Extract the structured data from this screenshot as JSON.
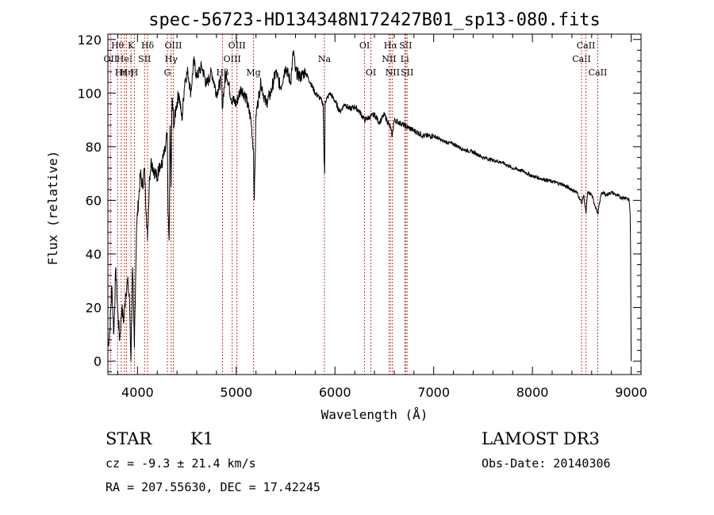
{
  "chart_data": {
    "type": "line",
    "title": "spec-56723-HD134348N172427B01_sp13-080.fits",
    "xlabel": "Wavelength (Å)",
    "ylabel": "Flux (relative)",
    "xlim": [
      3700,
      9100
    ],
    "ylim": [
      -5,
      122
    ],
    "xticks": [
      4000,
      5000,
      6000,
      7000,
      8000,
      9000
    ],
    "yticks": [
      0,
      20,
      40,
      60,
      80,
      100,
      120
    ],
    "grid": false,
    "series": [
      {
        "x": [
          3700,
          3720,
          3740,
          3760,
          3780,
          3800,
          3820,
          3840,
          3860,
          3880,
          3900,
          3920,
          3933,
          3950,
          3968,
          3990,
          4010,
          4030,
          4050,
          4070,
          4090,
          4101,
          4120,
          4140,
          4160,
          4180,
          4200,
          4220,
          4240,
          4260,
          4280,
          4300,
          4310,
          4320,
          4330,
          4340,
          4350,
          4370,
          4390,
          4420,
          4450,
          4480,
          4510,
          4540,
          4570,
          4600,
          4650,
          4700,
          4750,
          4800,
          4850,
          4861,
          4870,
          4900,
          4950,
          5000,
          5050,
          5100,
          5150,
          5175,
          5183,
          5200,
          5250,
          5300,
          5350,
          5400,
          5450,
          5500,
          5550,
          5580,
          5600,
          5650,
          5700,
          5750,
          5800,
          5850,
          5880,
          5890,
          5895,
          5900,
          5920,
          5950,
          6000,
          6050,
          6100,
          6150,
          6200,
          6250,
          6300,
          6350,
          6400,
          6450,
          6500,
          6550,
          6563,
          6580,
          6600,
          6650,
          6700,
          6750,
          6800,
          6900,
          7000,
          7100,
          7200,
          7300,
          7400,
          7500,
          7600,
          7700,
          7800,
          7900,
          8000,
          8100,
          8200,
          8300,
          8400,
          8450,
          8498,
          8520,
          8542,
          8560,
          8600,
          8662,
          8700,
          8750,
          8800,
          8850,
          8900,
          8950,
          8980,
          8990,
          8995,
          9000
        ],
        "y": [
          5,
          12,
          28,
          10,
          35,
          18,
          8,
          20,
          15,
          25,
          30,
          22,
          0,
          35,
          5,
          50,
          60,
          70,
          65,
          72,
          55,
          45,
          68,
          75,
          72,
          70,
          68,
          74,
          72,
          76,
          78,
          85,
          55,
          45,
          88,
          65,
          98,
          88,
          95,
          100,
          90,
          105,
          108,
          100,
          112,
          106,
          110,
          103,
          108,
          100,
          105,
          94,
          100,
          108,
          98,
          96,
          102,
          98,
          90,
          78,
          60,
          92,
          104,
          96,
          100,
          108,
          102,
          110,
          104,
          116,
          108,
          106,
          108,
          104,
          100,
          98,
          96,
          75,
          70,
          97,
          98,
          100,
          97,
          93,
          96,
          94,
          95,
          93,
          90,
          91,
          92,
          89,
          92,
          88,
          87,
          84,
          90,
          89,
          88,
          87,
          86,
          84,
          84,
          82,
          81,
          79,
          78,
          76,
          75,
          74,
          72,
          71,
          69,
          68,
          67,
          66,
          64,
          63,
          59,
          62,
          55,
          63,
          62,
          55,
          63,
          62,
          63,
          62,
          61,
          61,
          60,
          55,
          40,
          0
        ]
      }
    ],
    "line_marks": [
      {
        "x": 3727,
        "row": 1,
        "label": "OII"
      },
      {
        "x": 3798,
        "row": 0,
        "label": "Hθ"
      },
      {
        "x": 3835,
        "row": 2,
        "label": "Hη"
      },
      {
        "x": 3869,
        "row": 1,
        "label": "HeI"
      },
      {
        "x": 3889,
        "row": 2,
        "label": "Hη"
      },
      {
        "x": 3934,
        "row": 0,
        "label": "K"
      },
      {
        "x": 3969,
        "row": 2,
        "label": "H"
      },
      {
        "x": 4072,
        "row": 1,
        "label": "SII"
      },
      {
        "x": 4102,
        "row": 0,
        "label": "Hδ"
      },
      {
        "x": 4303,
        "row": 2,
        "label": "G"
      },
      {
        "x": 4341,
        "row": 1,
        "label": "Hγ"
      },
      {
        "x": 4363,
        "row": 0,
        "label": "OIII"
      },
      {
        "x": 4861,
        "row": 2,
        "label": "Hβ"
      },
      {
        "x": 4959,
        "row": 1,
        "label": "OIII"
      },
      {
        "x": 5007,
        "row": 0,
        "label": "OIII"
      },
      {
        "x": 5175,
        "row": 2,
        "label": "Mg"
      },
      {
        "x": 5893,
        "row": 1,
        "label": "Na"
      },
      {
        "x": 6300,
        "row": 0,
        "label": "OI"
      },
      {
        "x": 6364,
        "row": 2,
        "label": "OI"
      },
      {
        "x": 6548,
        "row": 1,
        "label": "NII"
      },
      {
        "x": 6563,
        "row": 0,
        "label": "Hα"
      },
      {
        "x": 6583,
        "row": 2,
        "label": "NII"
      },
      {
        "x": 6707,
        "row": 1,
        "label": "Li"
      },
      {
        "x": 6716,
        "row": 0,
        "label": "SII"
      },
      {
        "x": 6731,
        "row": 2,
        "label": "SII"
      },
      {
        "x": 8498,
        "row": 1,
        "label": "CaII"
      },
      {
        "x": 8542,
        "row": 0,
        "label": "CaII"
      },
      {
        "x": 8662,
        "row": 2,
        "label": "CaII"
      }
    ]
  },
  "footer": {
    "object_class": "STAR",
    "subclass": "K1",
    "survey": "LAMOST DR3",
    "velocity": "cz = -9.3 ± 21.4 km/s",
    "obs_date": "Obs-Date: 20140306",
    "coords": "RA = 207.55630, DEC =  17.42245"
  }
}
